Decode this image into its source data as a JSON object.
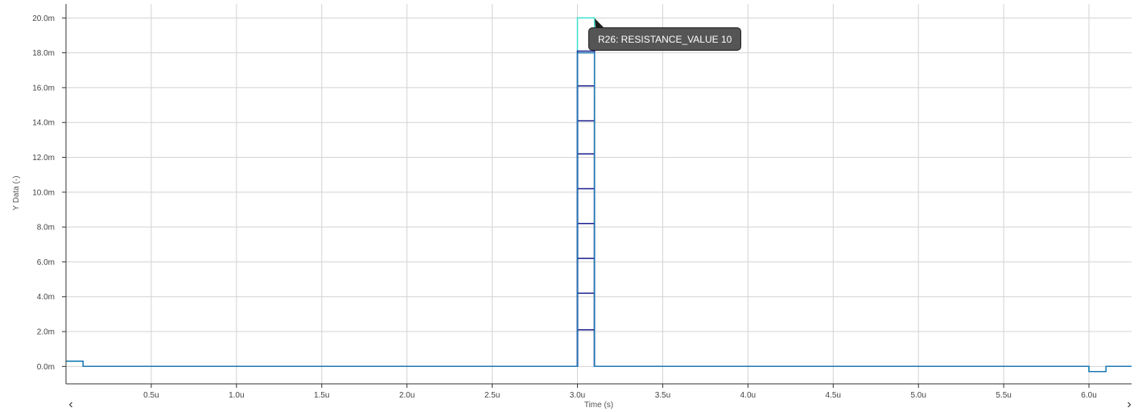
{
  "chart_data": {
    "type": "line",
    "title": "",
    "xlabel": "Time (s)",
    "ylabel": "Y Data (-)",
    "xlim": [
      0,
      6.25
    ],
    "ylim": [
      -1.0,
      20.8
    ],
    "x_unit": "u",
    "y_unit": "m",
    "x_ticks": [
      0.5,
      1.0,
      1.5,
      2.0,
      2.5,
      3.0,
      3.5,
      4.0,
      4.5,
      5.0,
      5.5,
      6.0
    ],
    "x_tick_labels": [
      "0.5u",
      "1.0u",
      "1.5u",
      "2.0u",
      "2.5u",
      "3.0u",
      "3.5u",
      "4.0u",
      "4.5u",
      "5.0u",
      "5.5u",
      "6.0u"
    ],
    "y_ticks": [
      0,
      2,
      4,
      6,
      8,
      10,
      12,
      14,
      16,
      18,
      20
    ],
    "y_tick_labels": [
      "0.0m",
      "2.0m",
      "4.0m",
      "6.0m",
      "8.0m",
      "10.0m",
      "12.0m",
      "14.0m",
      "16.0m",
      "18.0m",
      "20.0m"
    ],
    "grid": true,
    "series": [
      {
        "color": "#40e0d0",
        "x": [
          0,
          0.1,
          0.1,
          3.0,
          3.0,
          3.1,
          3.1,
          6.0,
          6.0,
          6.1,
          6.1,
          6.25
        ],
        "y": [
          0.3,
          0.3,
          0.0,
          0.0,
          20.0,
          20.0,
          0.0,
          0.0,
          -0.3,
          -0.3,
          0.0,
          0.0
        ]
      },
      {
        "color": "#1a1f8c",
        "x": [
          3.0,
          3.0,
          3.1,
          3.1
        ],
        "y": [
          0.0,
          18.1,
          18.1,
          0.0
        ]
      },
      {
        "color": "#1a1f8c",
        "x": [
          3.0,
          3.0,
          3.1,
          3.1
        ],
        "y": [
          0.0,
          16.1,
          16.1,
          0.0
        ]
      },
      {
        "color": "#1a1f8c",
        "x": [
          3.0,
          3.0,
          3.1,
          3.1
        ],
        "y": [
          0.0,
          14.1,
          14.1,
          0.0
        ]
      },
      {
        "color": "#1a1f8c",
        "x": [
          3.0,
          3.0,
          3.1,
          3.1
        ],
        "y": [
          0.0,
          12.2,
          12.2,
          0.0
        ]
      },
      {
        "color": "#1a1f8c",
        "x": [
          3.0,
          3.0,
          3.1,
          3.1
        ],
        "y": [
          0.0,
          10.2,
          10.2,
          0.0
        ]
      },
      {
        "color": "#1a1f8c",
        "x": [
          3.0,
          3.0,
          3.1,
          3.1
        ],
        "y": [
          0.0,
          8.2,
          8.2,
          0.0
        ]
      },
      {
        "color": "#1a1f8c",
        "x": [
          3.0,
          3.0,
          3.1,
          3.1
        ],
        "y": [
          0.0,
          6.2,
          6.2,
          0.0
        ]
      },
      {
        "color": "#1a1f8c",
        "x": [
          3.0,
          3.0,
          3.1,
          3.1
        ],
        "y": [
          0.0,
          4.2,
          4.2,
          0.0
        ]
      },
      {
        "color": "#1a1f8c",
        "x": [
          3.0,
          3.0,
          3.1,
          3.1
        ],
        "y": [
          0.0,
          2.1,
          2.1,
          0.0
        ]
      },
      {
        "color": "#1f78b4",
        "x": [
          0,
          0.1,
          0.1,
          3.0,
          3.0,
          3.1,
          3.1,
          6.0,
          6.0,
          6.1,
          6.1,
          6.25
        ],
        "y": [
          0.3,
          0.3,
          0.0,
          0.0,
          18.0,
          18.0,
          0.0,
          0.0,
          -0.3,
          -0.3,
          0.0,
          0.0
        ]
      }
    ]
  },
  "tooltip": {
    "text": "R26: RESISTANCE_VALUE 10"
  },
  "navigation": {
    "left_icon": "chevron-left-icon",
    "right_icon": "chevron-right-icon",
    "left_glyph": "‹",
    "right_glyph": "›"
  },
  "colors": {
    "grid": "#d3d3d3",
    "axis": "#333333",
    "tooltip_bg": "#555555"
  }
}
